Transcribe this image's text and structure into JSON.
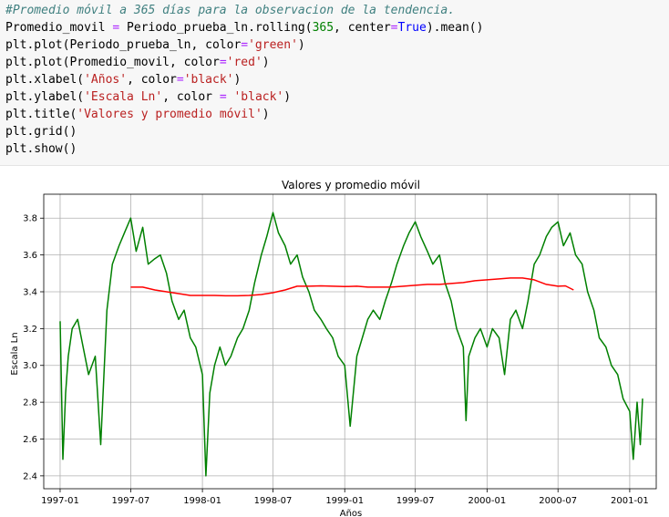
{
  "code_cell": {
    "lines": [
      {
        "segments": [
          {
            "t": "#Promedio móvil a 365 días para la observacion de la tendencia.",
            "c": "cm"
          }
        ]
      },
      {
        "segments": [
          {
            "t": "Promedio_movil "
          },
          {
            "t": "=",
            "c": "op"
          },
          {
            "t": " Periodo_prueba_ln.rolling("
          },
          {
            "t": "365",
            "c": "num"
          },
          {
            "t": ", center"
          },
          {
            "t": "=",
            "c": "op"
          },
          {
            "t": "True",
            "c": "kw"
          },
          {
            "t": ").mean()"
          }
        ]
      },
      {
        "segments": [
          {
            "t": "plt.plot(Periodo_prueba_ln, color"
          },
          {
            "t": "=",
            "c": "op"
          },
          {
            "t": "'green'",
            "c": "str"
          },
          {
            "t": ")"
          }
        ]
      },
      {
        "segments": [
          {
            "t": "plt.plot(Promedio_movil, color"
          },
          {
            "t": "=",
            "c": "op"
          },
          {
            "t": "'red'",
            "c": "str"
          },
          {
            "t": ")"
          }
        ]
      },
      {
        "segments": [
          {
            "t": "plt.xlabel("
          },
          {
            "t": "'Años'",
            "c": "str"
          },
          {
            "t": ", color"
          },
          {
            "t": "=",
            "c": "op"
          },
          {
            "t": "'black'",
            "c": "str"
          },
          {
            "t": ")"
          }
        ]
      },
      {
        "segments": [
          {
            "t": "plt.ylabel("
          },
          {
            "t": "'Escala Ln'",
            "c": "str"
          },
          {
            "t": ", color "
          },
          {
            "t": "=",
            "c": "op"
          },
          {
            "t": " "
          },
          {
            "t": "'black'",
            "c": "str"
          },
          {
            "t": ")"
          }
        ]
      },
      {
        "segments": [
          {
            "t": "plt.title("
          },
          {
            "t": "'Valores y promedio móvil'",
            "c": "str"
          },
          {
            "t": ")"
          }
        ]
      },
      {
        "segments": [
          {
            "t": "plt.grid()"
          }
        ]
      },
      {
        "segments": [
          {
            "t": "plt.show()"
          }
        ]
      }
    ]
  },
  "chart_data": {
    "type": "line",
    "title": "Valores y promedio móvil",
    "xlabel": "Años",
    "ylabel": "Escala Ln",
    "grid": true,
    "xlim": [
      "1996-11-20",
      "2001-03-10"
    ],
    "ylim": [
      2.33,
      3.93
    ],
    "x_ticks": [
      "1997-01",
      "1997-07",
      "1998-01",
      "1998-07",
      "1999-01",
      "1999-07",
      "2000-01",
      "2000-07",
      "2001-01"
    ],
    "y_ticks": [
      "2.4",
      "2.6",
      "2.8",
      "3.0",
      "3.2",
      "3.4",
      "3.6",
      "3.8"
    ],
    "series": [
      {
        "color": "#008000",
        "points": [
          [
            "1997-01-01",
            3.24
          ],
          [
            "1997-01-08",
            2.49
          ],
          [
            "1997-01-15",
            2.85
          ],
          [
            "1997-01-22",
            3.05
          ],
          [
            "1997-02-01",
            3.2
          ],
          [
            "1997-02-15",
            3.25
          ],
          [
            "1997-03-01",
            3.1
          ],
          [
            "1997-03-15",
            2.95
          ],
          [
            "1997-04-01",
            3.05
          ],
          [
            "1997-04-15",
            2.57
          ],
          [
            "1997-05-01",
            3.3
          ],
          [
            "1997-05-15",
            3.55
          ],
          [
            "1997-06-01",
            3.65
          ],
          [
            "1997-06-15",
            3.72
          ],
          [
            "1997-07-01",
            3.8
          ],
          [
            "1997-07-15",
            3.62
          ],
          [
            "1997-08-01",
            3.75
          ],
          [
            "1997-08-15",
            3.55
          ],
          [
            "1997-09-01",
            3.58
          ],
          [
            "1997-09-15",
            3.6
          ],
          [
            "1997-10-01",
            3.5
          ],
          [
            "1997-10-15",
            3.35
          ],
          [
            "1997-11-01",
            3.25
          ],
          [
            "1997-11-15",
            3.3
          ],
          [
            "1997-12-01",
            3.15
          ],
          [
            "1997-12-15",
            3.1
          ],
          [
            "1998-01-01",
            2.95
          ],
          [
            "1998-01-10",
            2.4
          ],
          [
            "1998-01-20",
            2.85
          ],
          [
            "1998-02-01",
            3.0
          ],
          [
            "1998-02-15",
            3.1
          ],
          [
            "1998-03-01",
            3.0
          ],
          [
            "1998-03-15",
            3.05
          ],
          [
            "1998-04-01",
            3.15
          ],
          [
            "1998-04-15",
            3.2
          ],
          [
            "1998-05-01",
            3.3
          ],
          [
            "1998-05-15",
            3.45
          ],
          [
            "1998-06-01",
            3.6
          ],
          [
            "1998-06-15",
            3.7
          ],
          [
            "1998-07-01",
            3.83
          ],
          [
            "1998-07-15",
            3.72
          ],
          [
            "1998-08-01",
            3.65
          ],
          [
            "1998-08-15",
            3.55
          ],
          [
            "1998-09-01",
            3.6
          ],
          [
            "1998-09-15",
            3.48
          ],
          [
            "1998-10-01",
            3.4
          ],
          [
            "1998-10-15",
            3.3
          ],
          [
            "1998-11-01",
            3.25
          ],
          [
            "1998-11-15",
            3.2
          ],
          [
            "1998-12-01",
            3.15
          ],
          [
            "1998-12-15",
            3.05
          ],
          [
            "1999-01-01",
            3.0
          ],
          [
            "1999-01-15",
            2.67
          ],
          [
            "1999-02-01",
            3.05
          ],
          [
            "1999-02-15",
            3.15
          ],
          [
            "1999-03-01",
            3.25
          ],
          [
            "1999-03-15",
            3.3
          ],
          [
            "1999-04-01",
            3.25
          ],
          [
            "1999-04-15",
            3.35
          ],
          [
            "1999-05-01",
            3.45
          ],
          [
            "1999-05-15",
            3.55
          ],
          [
            "1999-06-01",
            3.65
          ],
          [
            "1999-06-15",
            3.72
          ],
          [
            "1999-07-01",
            3.78
          ],
          [
            "1999-07-15",
            3.7
          ],
          [
            "1999-08-01",
            3.62
          ],
          [
            "1999-08-15",
            3.55
          ],
          [
            "1999-09-01",
            3.6
          ],
          [
            "1999-09-15",
            3.45
          ],
          [
            "1999-10-01",
            3.35
          ],
          [
            "1999-10-15",
            3.2
          ],
          [
            "1999-11-01",
            3.1
          ],
          [
            "1999-11-08",
            2.7
          ],
          [
            "1999-11-15",
            3.05
          ],
          [
            "1999-12-01",
            3.15
          ],
          [
            "1999-12-15",
            3.2
          ],
          [
            "2000-01-01",
            3.1
          ],
          [
            "2000-01-15",
            3.2
          ],
          [
            "2000-02-01",
            3.15
          ],
          [
            "2000-02-15",
            2.95
          ],
          [
            "2000-03-01",
            3.25
          ],
          [
            "2000-03-15",
            3.3
          ],
          [
            "2000-04-01",
            3.2
          ],
          [
            "2000-04-15",
            3.35
          ],
          [
            "2000-05-01",
            3.55
          ],
          [
            "2000-05-15",
            3.6
          ],
          [
            "2000-06-01",
            3.7
          ],
          [
            "2000-06-15",
            3.75
          ],
          [
            "2000-07-01",
            3.78
          ],
          [
            "2000-07-15",
            3.65
          ],
          [
            "2000-08-01",
            3.72
          ],
          [
            "2000-08-15",
            3.6
          ],
          [
            "2000-09-01",
            3.55
          ],
          [
            "2000-09-15",
            3.4
          ],
          [
            "2000-10-01",
            3.3
          ],
          [
            "2000-10-15",
            3.15
          ],
          [
            "2000-11-01",
            3.1
          ],
          [
            "2000-11-15",
            3.0
          ],
          [
            "2000-12-01",
            2.95
          ],
          [
            "2000-12-15",
            2.82
          ],
          [
            "2001-01-01",
            2.75
          ],
          [
            "2001-01-10",
            2.49
          ],
          [
            "2001-01-20",
            2.8
          ],
          [
            "2001-01-28",
            2.57
          ],
          [
            "2001-02-03",
            2.82
          ]
        ]
      },
      {
        "color": "#ff0000",
        "points": [
          [
            "1997-07-01",
            3.425
          ],
          [
            "1997-08-01",
            3.425
          ],
          [
            "1997-09-01",
            3.41
          ],
          [
            "1997-10-01",
            3.4
          ],
          [
            "1997-11-01",
            3.39
          ],
          [
            "1997-12-01",
            3.38
          ],
          [
            "1998-01-01",
            3.38
          ],
          [
            "1998-02-01",
            3.38
          ],
          [
            "1998-03-01",
            3.378
          ],
          [
            "1998-04-01",
            3.378
          ],
          [
            "1998-05-01",
            3.38
          ],
          [
            "1998-06-01",
            3.385
          ],
          [
            "1998-07-01",
            3.395
          ],
          [
            "1998-08-01",
            3.41
          ],
          [
            "1998-09-01",
            3.43
          ],
          [
            "1998-10-01",
            3.43
          ],
          [
            "1998-11-01",
            3.432
          ],
          [
            "1998-12-01",
            3.43
          ],
          [
            "1999-01-01",
            3.428
          ],
          [
            "1999-02-01",
            3.43
          ],
          [
            "1999-03-01",
            3.425
          ],
          [
            "1999-04-01",
            3.425
          ],
          [
            "1999-05-01",
            3.425
          ],
          [
            "1999-06-01",
            3.43
          ],
          [
            "1999-07-01",
            3.435
          ],
          [
            "1999-08-01",
            3.44
          ],
          [
            "1999-09-01",
            3.44
          ],
          [
            "1999-10-01",
            3.445
          ],
          [
            "1999-11-01",
            3.45
          ],
          [
            "1999-12-01",
            3.46
          ],
          [
            "2000-01-01",
            3.465
          ],
          [
            "2000-02-01",
            3.47
          ],
          [
            "2000-03-01",
            3.475
          ],
          [
            "2000-04-01",
            3.475
          ],
          [
            "2000-05-01",
            3.465
          ],
          [
            "2000-06-01",
            3.44
          ],
          [
            "2000-07-01",
            3.43
          ],
          [
            "2000-07-20",
            3.432
          ],
          [
            "2000-08-10",
            3.41
          ]
        ]
      }
    ]
  }
}
